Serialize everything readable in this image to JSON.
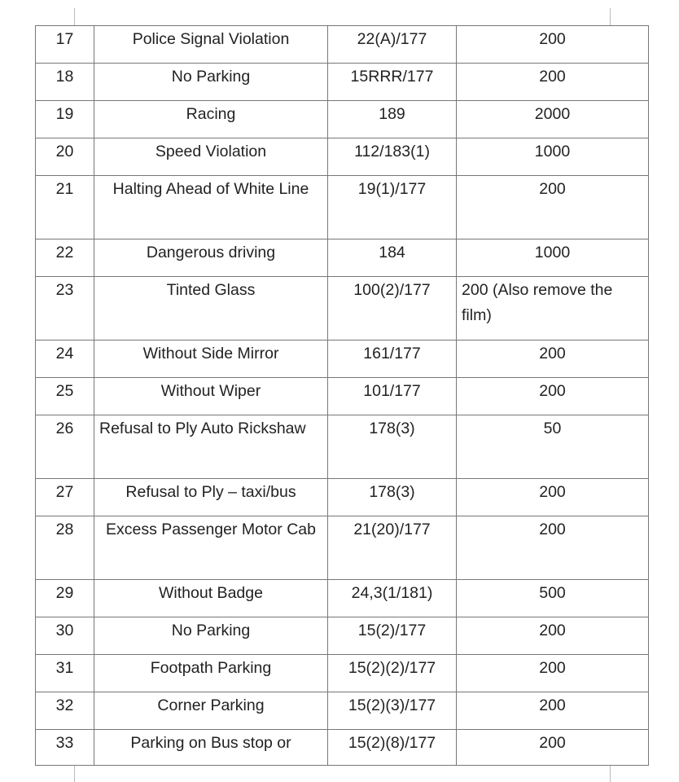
{
  "rows": [
    {
      "no": "17",
      "offence": "Police Signal Violation",
      "section": "22(A)/177",
      "fine": "200"
    },
    {
      "no": "18",
      "offence": "No Parking",
      "section": "15RRR/177",
      "fine": "200"
    },
    {
      "no": "19",
      "offence": "Racing",
      "section": "189",
      "fine": "2000"
    },
    {
      "no": "20",
      "offence": "Speed Violation",
      "section": "112/183(1)",
      "fine": "1000"
    },
    {
      "no": "21",
      "offence": "Halting Ahead of White Line",
      "section": "19(1)/177",
      "fine": "200"
    },
    {
      "no": "22",
      "offence": "Dangerous driving",
      "section": "184",
      "fine": "1000"
    },
    {
      "no": "23",
      "offence": "Tinted Glass",
      "section": "100(2)/177",
      "fine": "200 (Also remove the film)"
    },
    {
      "no": "24",
      "offence": "Without Side Mirror",
      "section": "161/177",
      "fine": "200"
    },
    {
      "no": "25",
      "offence": "Without Wiper",
      "section": "101/177",
      "fine": "200"
    },
    {
      "no": "26",
      "offence": "Refusal to Ply Auto Rickshaw",
      "section": "178(3)",
      "fine": "50"
    },
    {
      "no": "27",
      "offence": "Refusal to Ply – taxi/bus",
      "section": "178(3)",
      "fine": "200"
    },
    {
      "no": "28",
      "offence": "Excess Passenger Motor Cab",
      "section": "21(20)/177",
      "fine": "200"
    },
    {
      "no": "29",
      "offence": "Without Badge",
      "section": "24,3(1/181)",
      "fine": "500"
    },
    {
      "no": "30",
      "offence": "No Parking",
      "section": "15(2)/177",
      "fine": "200"
    },
    {
      "no": "31",
      "offence": "Footpath Parking",
      "section": "15(2)(2)/177",
      "fine": "200"
    },
    {
      "no": "32",
      "offence": "Corner Parking",
      "section": "15(2)(3)/177",
      "fine": "200"
    },
    {
      "no": "33",
      "offence": "Parking on Bus stop or",
      "section": "15(2)(8)/177",
      "fine": "200"
    }
  ]
}
